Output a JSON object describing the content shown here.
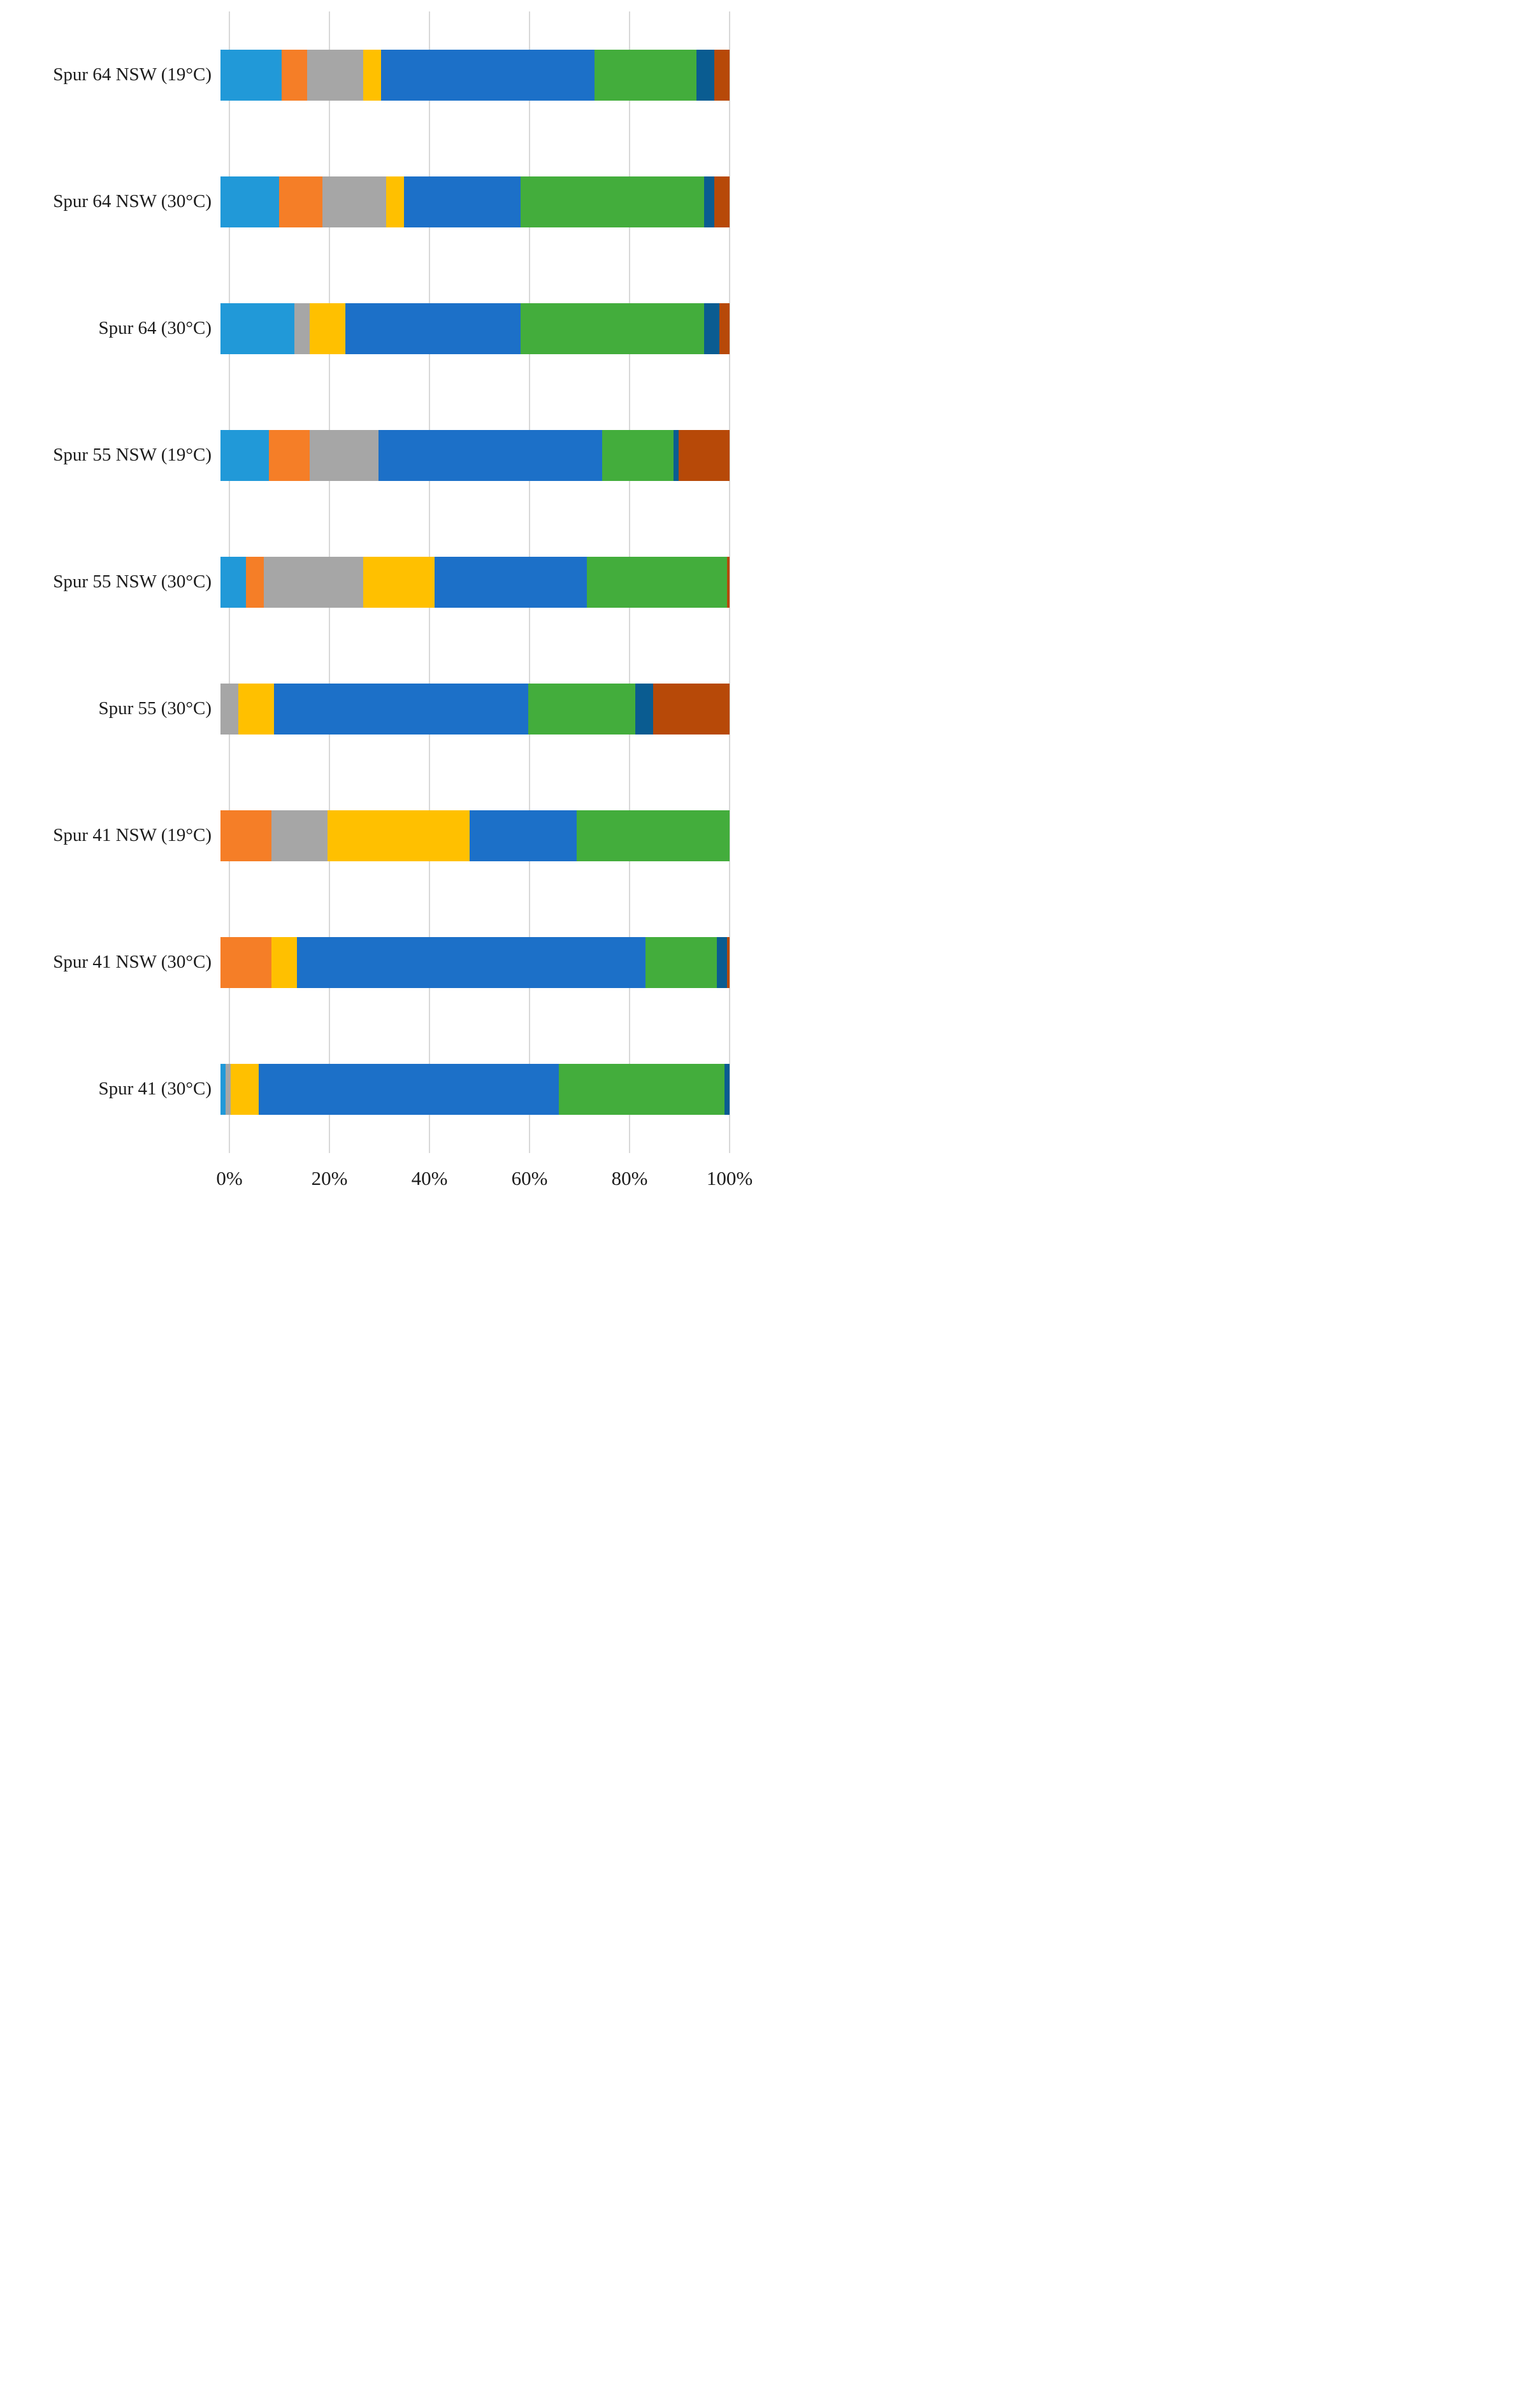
{
  "chart_data": {
    "type": "bar",
    "orientation": "horizontal-stacked",
    "title": "",
    "xlabel": "",
    "ylabel": "",
    "unit": "%",
    "x_axis": {
      "min": 0,
      "max": 100,
      "ticks": [
        "0%",
        "20%",
        "40%",
        "60%",
        "80%",
        "100%"
      ],
      "grid": true
    },
    "legend": "none",
    "categories": [
      "Spur 64 NSW (19°C)",
      "Spur 64 NSW (30°C)",
      "Spur 64 (30°C)",
      "Spur 55 NSW (19°C)",
      "Spur 55 NSW (30°C)",
      "Spur 55 (30°C)",
      "Spur 41 NSW (19°C)",
      "Spur 41 NSW (30°C)",
      "Spur 41 (30°C)"
    ],
    "series": [
      {
        "name": "light-blue",
        "color": "#2199D8",
        "values": [
          12,
          11.5,
          14.5,
          9.5,
          5,
          0,
          0,
          0,
          1
        ]
      },
      {
        "name": "orange",
        "color": "#F57E27",
        "values": [
          5,
          8.5,
          0,
          8,
          3.5,
          0,
          10,
          10,
          0
        ]
      },
      {
        "name": "gray",
        "color": "#A6A6A6",
        "values": [
          11,
          12.5,
          3,
          13.5,
          19.5,
          3.5,
          11,
          0,
          1
        ]
      },
      {
        "name": "yellow",
        "color": "#FFC000",
        "values": [
          3.5,
          3.5,
          7,
          0,
          14,
          7,
          28,
          5,
          5.5
        ]
      },
      {
        "name": "blue",
        "color": "#1C70C8",
        "values": [
          42,
          23,
          34.5,
          44,
          30,
          50,
          21,
          68.5,
          59
        ]
      },
      {
        "name": "green",
        "color": "#43AD3C",
        "values": [
          20,
          36,
          36,
          14,
          27.5,
          21,
          30,
          14,
          32.5
        ]
      },
      {
        "name": "dark-blue",
        "color": "#0A5C91",
        "values": [
          3.5,
          2,
          3,
          1,
          0,
          3.5,
          0,
          2,
          1
        ]
      },
      {
        "name": "dark-red",
        "color": "#B74908",
        "values": [
          3,
          3,
          2,
          10,
          0.5,
          15,
          0,
          0.5,
          0
        ]
      }
    ]
  },
  "colors": {
    "background": "#FFFFFF",
    "gridline": "#D8D8D8",
    "text": "#1C1C1C"
  }
}
